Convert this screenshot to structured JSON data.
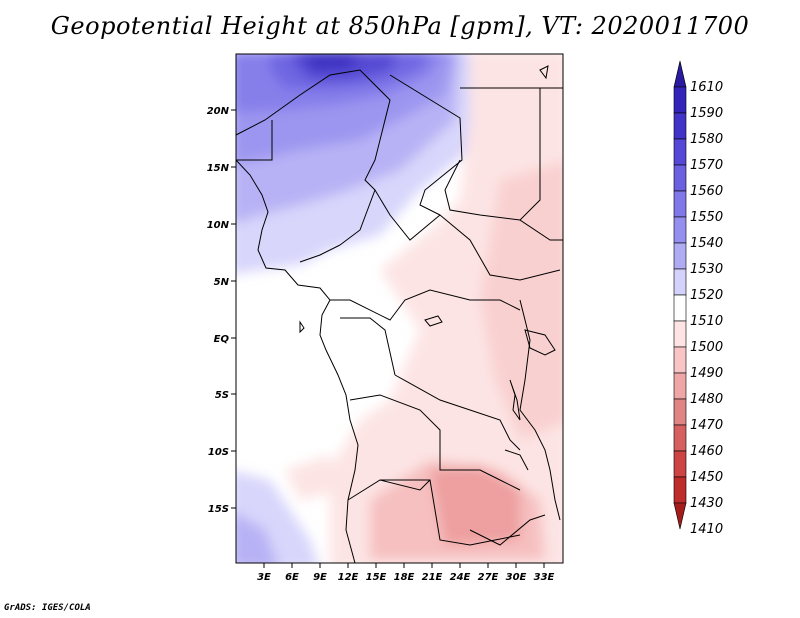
{
  "title": "Geopotential Height at 850hPa [gpm], VT: 2020011700",
  "footer": "GrADS: IGES/COLA",
  "lat_ticks": [
    "20N",
    "15N",
    "10N",
    "5N",
    "EQ",
    "5S",
    "10S",
    "15S"
  ],
  "lon_ticks": [
    "3E",
    "6E",
    "9E",
    "12E",
    "15E",
    "18E",
    "21E",
    "24E",
    "27E",
    "30E",
    "33E"
  ],
  "colorbar": {
    "labels": [
      "1610",
      "1590",
      "1580",
      "1570",
      "1560",
      "1550",
      "1540",
      "1530",
      "1520",
      "1510",
      "1500",
      "1490",
      "1480",
      "1470",
      "1460",
      "1450",
      "1430",
      "1410"
    ],
    "colors": [
      "#2a1aa0",
      "#3323b8",
      "#4233c8",
      "#5548d6",
      "#6a60e0",
      "#8077e8",
      "#958fef",
      "#b0acf4",
      "#d4d2fa",
      "#ffffff",
      "#fde3e3",
      "#f8c4c4",
      "#eea6a6",
      "#e08484",
      "#d66060",
      "#cc4444",
      "#bf2c2c",
      "#a51c1c"
    ]
  },
  "map": {
    "variable": "Geopotential Height",
    "level": "850hPa",
    "units": "gpm",
    "valid_time": "2020011700"
  }
}
